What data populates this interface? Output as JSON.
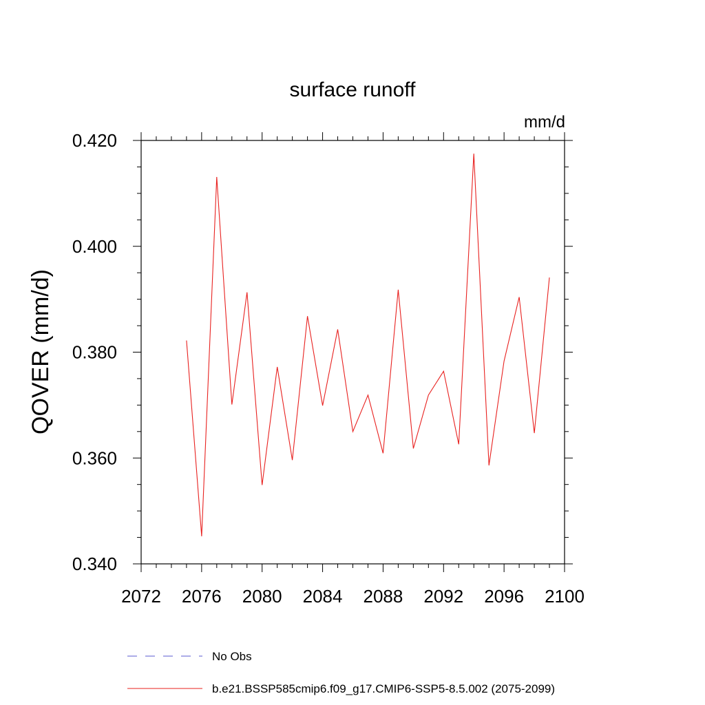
{
  "chart_data": {
    "type": "line",
    "title": "surface runoff",
    "units_label": "mm/d",
    "xlabel": "",
    "ylabel": "QOVER  (mm/d)",
    "xlim": [
      2072,
      2100
    ],
    "ylim": [
      0.34,
      0.42
    ],
    "x_ticks": [
      "2072",
      "2076",
      "2080",
      "2084",
      "2088",
      "2092",
      "2096",
      "2100"
    ],
    "y_ticks": [
      "0.340",
      "0.360",
      "0.380",
      "0.400",
      "0.420"
    ],
    "grid": false,
    "legend_position": "bottom",
    "series": [
      {
        "name": "No Obs",
        "color": "#5a5ad0",
        "style": "dashed",
        "x": [],
        "y": []
      },
      {
        "name": "b.e21.BSSP585cmip6.f09_g17.CMIP6-SSP5-8.5.002 (2075-2099)",
        "color": "#e8201e",
        "style": "solid",
        "x": [
          2075,
          2076,
          2077,
          2078,
          2079,
          2080,
          2081,
          2082,
          2083,
          2084,
          2085,
          2086,
          2087,
          2088,
          2089,
          2090,
          2091,
          2092,
          2093,
          2094,
          2095,
          2096,
          2097,
          2098,
          2099
        ],
        "y": [
          0.3822,
          0.3452,
          0.4131,
          0.3701,
          0.3913,
          0.3549,
          0.3772,
          0.3596,
          0.3868,
          0.3699,
          0.3843,
          0.365,
          0.3719,
          0.3609,
          0.3918,
          0.3618,
          0.3719,
          0.3764,
          0.3626,
          0.4175,
          0.3586,
          0.3783,
          0.3904,
          0.3647,
          0.3941
        ]
      }
    ]
  }
}
